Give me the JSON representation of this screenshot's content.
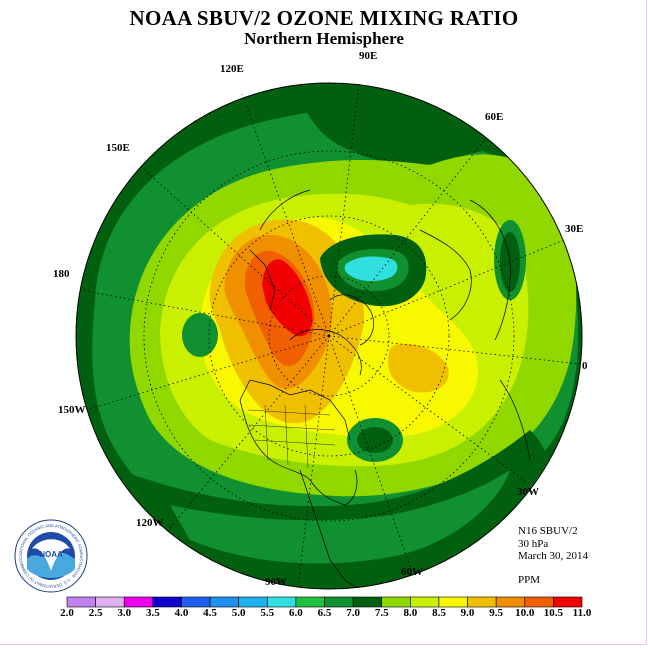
{
  "title": "NOAA SBUV/2 OZONE MIXING RATIO",
  "subtitle": "Northern Hemisphere",
  "longitude_labels": {
    "lon_90e": "90E",
    "lon_60e": "60E",
    "lon_30e": "30E",
    "lon_0": "0",
    "lon_30w": "30W",
    "lon_60w": "60W",
    "lon_90w": "90W",
    "lon_120w": "120W",
    "lon_150w": "150W",
    "lon_180": "180",
    "lon_150e": "150E",
    "lon_120e": "120E"
  },
  "info": {
    "instrument": "N16 SBUV/2",
    "level": "30 hPa",
    "date": "March 30, 2014",
    "units": "PPM"
  },
  "colorbar": {
    "ticks": [
      "2.0",
      "2.5",
      "3.0",
      "3.5",
      "4.0",
      "4.5",
      "5.0",
      "5.5",
      "6.0",
      "6.5",
      "7.0",
      "7.5",
      "8.0",
      "8.5",
      "9.0",
      "9.5",
      "10.0",
      "10.5",
      "11.0"
    ],
    "colors": [
      "#c080f0",
      "#e0b0f0",
      "#f000f0",
      "#1000d0",
      "#2060f0",
      "#2090f0",
      "#20b0f0",
      "#30e0e0",
      "#20c040",
      "#109030",
      "#006010",
      "#90d800",
      "#c8f000",
      "#f8f800",
      "#f0c000",
      "#f09000",
      "#f06000",
      "#f00000",
      "#805030"
    ]
  },
  "logo": {
    "text": "NOAA",
    "ring_text": "NATIONAL OCEANIC AND ATMOSPHERIC ADMINISTRATION · U.S. DEPARTMENT OF COMMERCE"
  }
}
